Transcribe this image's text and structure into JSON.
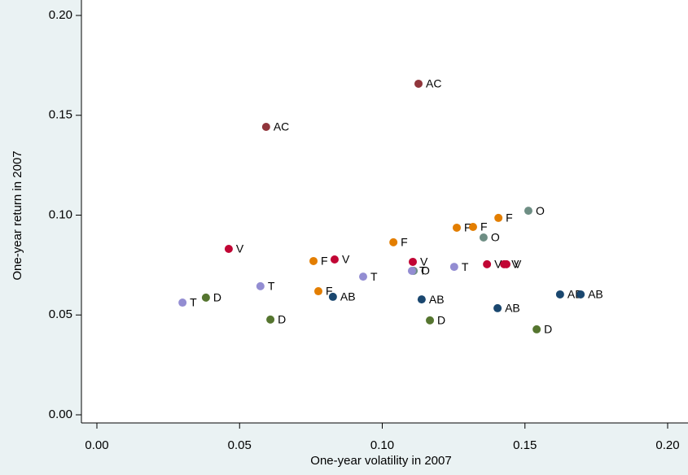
{
  "chart_data": {
    "type": "scatter",
    "x_label": "One-year volatility in 2007",
    "y_label": "One-year return in 2007",
    "xlim": [
      0,
      0.2
    ],
    "ylim": [
      0,
      0.2
    ],
    "xticks": [
      {
        "value": 0,
        "label": "0.00"
      },
      {
        "value": 0.05,
        "label": "0.05"
      },
      {
        "value": 0.1,
        "label": "0.10"
      },
      {
        "value": 0.15,
        "label": "0.15"
      },
      {
        "value": 0.2,
        "label": "0.20"
      }
    ],
    "yticks": [
      {
        "value": 0,
        "label": "0.00"
      },
      {
        "value": 0.05,
        "label": "0.05"
      },
      {
        "value": 0.1,
        "label": "0.10"
      },
      {
        "value": 0.15,
        "label": "0.15"
      },
      {
        "value": 0.2,
        "label": "0.20"
      }
    ],
    "series": [
      {
        "name": "AC",
        "color": "#90353b",
        "x": [
          0.0593,
          0.1127
        ],
        "values": [
          0.1442,
          0.1658
        ]
      },
      {
        "name": "V",
        "color": "#c10534",
        "x": [
          0.0462,
          0.0833,
          0.1107,
          0.1367,
          0.1427,
          0.1435
        ],
        "values": [
          0.0831,
          0.0778,
          0.0766,
          0.0754,
          0.0754,
          0.0754
        ]
      },
      {
        "name": "F",
        "color": "#e37e00",
        "x": [
          0.0759,
          0.0776,
          0.1039,
          0.1261,
          0.1318,
          0.1407
        ],
        "values": [
          0.077,
          0.0619,
          0.0864,
          0.0937,
          0.0941,
          0.0986
        ]
      },
      {
        "name": "O",
        "color": "#6e8e84",
        "x": [
          0.1512,
          0.1355,
          0.111
        ],
        "values": [
          0.1022,
          0.0888,
          0.0721
        ]
      },
      {
        "name": "T",
        "color": "#938dd2",
        "x": [
          0.03,
          0.0573,
          0.0933,
          0.1104,
          0.1252
        ],
        "values": [
          0.0562,
          0.0644,
          0.0692,
          0.0721,
          0.0741
        ]
      },
      {
        "name": "D",
        "color": "#55752f",
        "x": [
          0.0382,
          0.0608,
          0.1167,
          0.1541
        ],
        "values": [
          0.0587,
          0.0477,
          0.0473,
          0.0428
        ]
      },
      {
        "name": "AB",
        "color": "#1a476f",
        "x": [
          0.0827,
          0.1138,
          0.1404,
          0.1623,
          0.1695
        ],
        "values": [
          0.0591,
          0.0578,
          0.0534,
          0.0603,
          0.0603
        ]
      }
    ]
  }
}
